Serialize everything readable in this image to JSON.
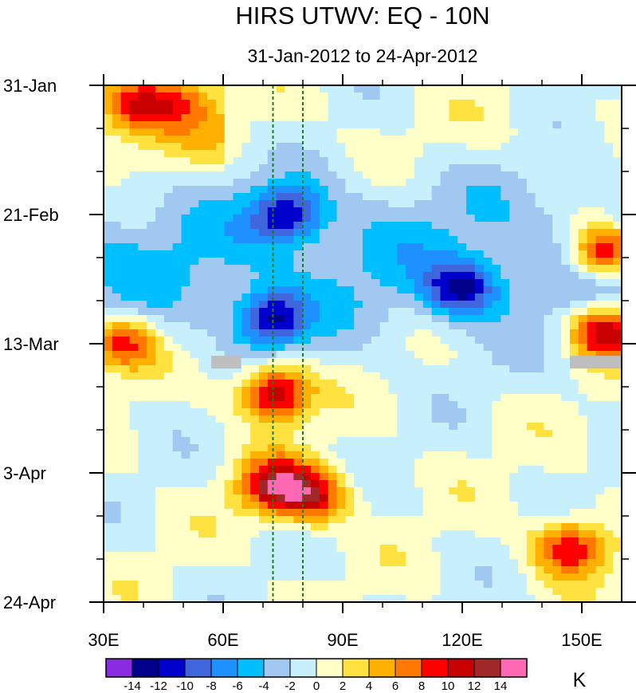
{
  "chart_data": {
    "type": "heatmap",
    "title": "HIRS UTWV: EQ - 10N",
    "subtitle": "31-Jan-2012 to 24-Apr-2012",
    "x_axis": {
      "range": [
        30,
        160
      ],
      "ticks": [
        {
          "value": 30,
          "label": "30E"
        },
        {
          "value": 60,
          "label": "60E"
        },
        {
          "value": 90,
          "label": "90E"
        },
        {
          "value": 120,
          "label": "120E"
        },
        {
          "value": 150,
          "label": "150E"
        }
      ]
    },
    "y_axis": {
      "range_days": [
        0,
        84
      ],
      "direction": "time increases downward",
      "ticks": [
        {
          "value": 0,
          "label": "31-Jan"
        },
        {
          "value": 21,
          "label": "21-Feb"
        },
        {
          "value": 42,
          "label": "13-Mar"
        },
        {
          "value": 63,
          "label": "3-Apr"
        },
        {
          "value": 84,
          "label": "24-Apr"
        }
      ]
    },
    "reference_lines_lon": [
      72.5,
      80
    ],
    "colorbar": {
      "unit": "K",
      "levels": [
        -14,
        -12,
        -10,
        -8,
        -6,
        -4,
        -2,
        0,
        2,
        4,
        6,
        8,
        10,
        12,
        14
      ],
      "labels": [
        "-14",
        "-12",
        "-10",
        "-8",
        "-6",
        "-4",
        "-2",
        "0",
        "2",
        "4",
        "6",
        "8",
        "10",
        "12",
        "14"
      ],
      "colors": [
        "#8a2be2",
        "#00008b",
        "#0000cd",
        "#3f66dc",
        "#1e90ff",
        "#00bfff",
        "#a0c8f0",
        "#c8f0fc",
        "#ffffc8",
        "#ffe140",
        "#ffb000",
        "#ff7800",
        "#ff0000",
        "#c80000",
        "#a02828",
        "#ff69b4"
      ]
    },
    "approx_anomaly_features": [
      {
        "lon": 38,
        "day": 3,
        "value": 9
      },
      {
        "lon": 50,
        "day": 2,
        "value": 6
      },
      {
        "lon": 76,
        "day": 21,
        "value": -10
      },
      {
        "lon": 72,
        "day": 38,
        "value": -11
      },
      {
        "lon": 73,
        "day": 50,
        "value": 13
      },
      {
        "lon": 73,
        "day": 65,
        "value": 12
      },
      {
        "lon": 83,
        "day": 67,
        "value": 9
      },
      {
        "lon": 156,
        "day": 27,
        "value": 13
      },
      {
        "lon": 156,
        "day": 40,
        "value": 13
      },
      {
        "lon": 34,
        "day": 42,
        "value": 10
      },
      {
        "lon": 147,
        "day": 75,
        "value": 10
      },
      {
        "lon": 120,
        "day": 33,
        "value": -10
      }
    ],
    "missing_data_regions": [
      {
        "lon_range": [
          57,
          64.5
        ],
        "day": 45
      },
      {
        "lon_range": [
          147,
          160
        ],
        "day": 45
      }
    ]
  }
}
